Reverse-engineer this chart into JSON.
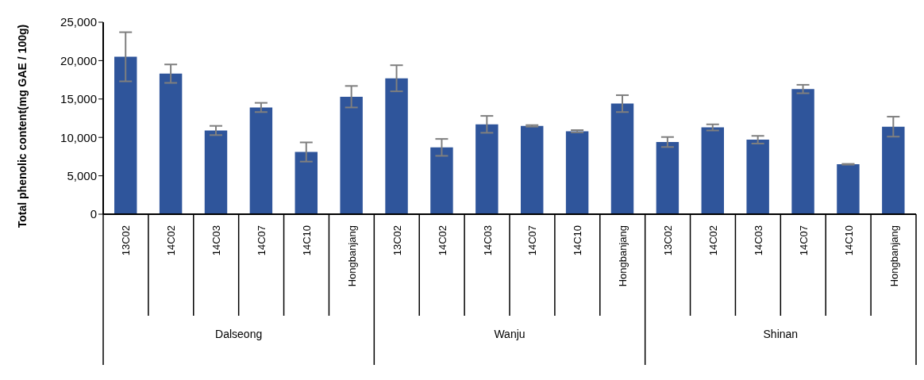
{
  "chart_data": {
    "type": "bar",
    "ylabel": "Total phenolic content(mg GAE / 100g)",
    "categories": [
      "13C02",
      "14C02",
      "14C03",
      "14C07",
      "14C10",
      "Hongbanjang",
      "13C02",
      "14C02",
      "14C03",
      "14C07",
      "14C10",
      "Hongbanjang",
      "13C02",
      "14C02",
      "14C03",
      "14C07",
      "14C10",
      "Hongbanjang"
    ],
    "values": [
      20500,
      18300,
      10900,
      13900,
      8100,
      15300,
      17700,
      8700,
      11700,
      11500,
      10800,
      14400,
      9400,
      11300,
      9700,
      16300,
      6500,
      11400
    ],
    "errors": [
      3200,
      1200,
      600,
      600,
      1250,
      1400,
      1700,
      1100,
      1100,
      100,
      150,
      1100,
      650,
      400,
      500,
      550,
      50,
      1300
    ],
    "color": "#2f559b",
    "ylim": [
      0,
      25000
    ],
    "yticks": [
      {
        "value": 0,
        "label": "0"
      },
      {
        "value": 5000,
        "label": "5,000"
      },
      {
        "value": 10000,
        "label": "10,000"
      },
      {
        "value": 15000,
        "label": "15,000"
      },
      {
        "value": 20000,
        "label": "20,000"
      },
      {
        "value": 25000,
        "label": "25,000"
      }
    ],
    "annotations": [
      "Dalseong",
      "Wanju",
      "Shinan"
    ],
    "grid": false
  }
}
